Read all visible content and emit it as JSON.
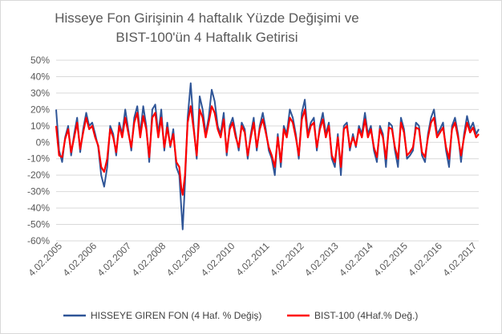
{
  "chart_data": {
    "type": "line",
    "title": [
      "Hisseye Fon Girişinin  4 haftalık Yüzde Değişimi  ve",
      "BIST-100'ün 4 Haftalık Getirisi"
    ],
    "xlabel": "",
    "ylabel": "",
    "ylim": [
      -60,
      50
    ],
    "yticks": [
      "50%",
      "40%",
      "30%",
      "20%",
      "10%",
      "0%",
      "-10%",
      "-20%",
      "-30%",
      "-40%",
      "-50%",
      "-60%"
    ],
    "xticks": [
      "4.02.2005",
      "4.02.2006",
      "4.02.2007",
      "4.02.2008",
      "4.02.2009",
      "4.02.2010",
      "4.02.2011",
      "4.02.2012",
      "4.02.2013",
      "4.02.2014",
      "4.02.2015",
      "4.02.2016",
      "4.02.2017"
    ],
    "x_range": [
      2005.09,
      2017.75
    ],
    "grid": "horizontal",
    "legend_position": "bottom",
    "series": [
      {
        "name": "HISSEYE GIREN FON (4 Haf. % Değiş)",
        "color": "#2f5597",
        "x": [
          2005.09,
          2005.18,
          2005.27,
          2005.36,
          2005.45,
          2005.54,
          2005.63,
          2005.72,
          2005.81,
          2005.9,
          2005.99,
          2006.08,
          2006.17,
          2006.26,
          2006.35,
          2006.44,
          2006.53,
          2006.62,
          2006.71,
          2006.8,
          2006.89,
          2006.98,
          2007.07,
          2007.16,
          2007.25,
          2007.34,
          2007.43,
          2007.52,
          2007.61,
          2007.7,
          2007.79,
          2007.88,
          2007.97,
          2008.06,
          2008.15,
          2008.24,
          2008.33,
          2008.42,
          2008.51,
          2008.6,
          2008.69,
          2008.78,
          2008.84,
          2008.88,
          2008.95,
          2009.03,
          2009.12,
          2009.21,
          2009.3,
          2009.39,
          2009.48,
          2009.57,
          2009.66,
          2009.75,
          2009.84,
          2009.93,
          2010.02,
          2010.11,
          2010.2,
          2010.29,
          2010.38,
          2010.47,
          2010.56,
          2010.65,
          2010.74,
          2010.83,
          2010.92,
          2011.01,
          2011.1,
          2011.19,
          2011.28,
          2011.37,
          2011.46,
          2011.55,
          2011.64,
          2011.73,
          2011.82,
          2011.91,
          2012.0,
          2012.09,
          2012.18,
          2012.27,
          2012.36,
          2012.45,
          2012.54,
          2012.63,
          2012.72,
          2012.81,
          2012.9,
          2012.99,
          2013.08,
          2013.17,
          2013.26,
          2013.35,
          2013.44,
          2013.53,
          2013.62,
          2013.71,
          2013.8,
          2013.89,
          2013.98,
          2014.07,
          2014.16,
          2014.25,
          2014.34,
          2014.43,
          2014.52,
          2014.61,
          2014.7,
          2014.79,
          2014.88,
          2014.97,
          2015.06,
          2015.15,
          2015.24,
          2015.33,
          2015.42,
          2015.51,
          2015.6,
          2015.69,
          2015.78,
          2015.87,
          2015.96,
          2016.05,
          2016.14,
          2016.23,
          2016.32,
          2016.41,
          2016.5,
          2016.59,
          2016.68,
          2016.77,
          2016.86,
          2016.95,
          2017.04,
          2017.13,
          2017.22,
          2017.31,
          2017.4,
          2017.49,
          2017.58,
          2017.67,
          2017.75
        ],
        "values": [
          20,
          -5,
          -12,
          3,
          10,
          -8,
          5,
          15,
          -6,
          8,
          18,
          10,
          12,
          5,
          -3,
          -20,
          -27,
          -15,
          10,
          5,
          -8,
          12,
          5,
          20,
          8,
          -5,
          15,
          22,
          5,
          22,
          10,
          -12,
          20,
          23,
          5,
          20,
          -5,
          12,
          -3,
          8,
          -15,
          -20,
          -40,
          -53,
          -25,
          15,
          36,
          10,
          -10,
          28,
          20,
          5,
          15,
          32,
          25,
          10,
          5,
          18,
          -8,
          10,
          15,
          5,
          -5,
          12,
          8,
          -10,
          5,
          15,
          -5,
          10,
          18,
          8,
          -5,
          -10,
          -20,
          5,
          -15,
          10,
          5,
          20,
          15,
          5,
          -10,
          18,
          26,
          5,
          12,
          15,
          -5,
          10,
          18,
          5,
          12,
          -10,
          -15,
          5,
          -20,
          10,
          12,
          -5,
          5,
          -3,
          10,
          5,
          18,
          5,
          10,
          -5,
          -12,
          10,
          5,
          -15,
          12,
          10,
          -5,
          -15,
          15,
          8,
          -10,
          -8,
          -5,
          12,
          10,
          -8,
          -12,
          5,
          15,
          20,
          5,
          8,
          12,
          -5,
          -15,
          10,
          15,
          5,
          -12,
          5,
          16,
          8,
          12,
          5,
          8
        ]
      },
      {
        "name": "BIST-100 (4Haf.% Değ.)",
        "color": "#ff0000",
        "x": [
          2005.09,
          2005.18,
          2005.27,
          2005.36,
          2005.45,
          2005.54,
          2005.63,
          2005.72,
          2005.81,
          2005.9,
          2005.99,
          2006.08,
          2006.17,
          2006.26,
          2006.35,
          2006.44,
          2006.53,
          2006.62,
          2006.71,
          2006.8,
          2006.89,
          2006.98,
          2007.07,
          2007.16,
          2007.25,
          2007.34,
          2007.43,
          2007.52,
          2007.61,
          2007.7,
          2007.79,
          2007.88,
          2007.97,
          2008.06,
          2008.15,
          2008.24,
          2008.33,
          2008.42,
          2008.51,
          2008.6,
          2008.69,
          2008.78,
          2008.84,
          2008.88,
          2008.95,
          2009.03,
          2009.12,
          2009.21,
          2009.3,
          2009.39,
          2009.48,
          2009.57,
          2009.66,
          2009.75,
          2009.84,
          2009.93,
          2010.02,
          2010.11,
          2010.2,
          2010.29,
          2010.38,
          2010.47,
          2010.56,
          2010.65,
          2010.74,
          2010.83,
          2010.92,
          2011.01,
          2011.1,
          2011.19,
          2011.28,
          2011.37,
          2011.46,
          2011.55,
          2011.64,
          2011.73,
          2011.82,
          2011.91,
          2012.0,
          2012.09,
          2012.18,
          2012.27,
          2012.36,
          2012.45,
          2012.54,
          2012.63,
          2012.72,
          2012.81,
          2012.9,
          2012.99,
          2013.08,
          2013.17,
          2013.26,
          2013.35,
          2013.44,
          2013.53,
          2013.62,
          2013.71,
          2013.8,
          2013.89,
          2013.98,
          2014.07,
          2014.16,
          2014.25,
          2014.34,
          2014.43,
          2014.52,
          2014.61,
          2014.7,
          2014.79,
          2014.88,
          2014.97,
          2015.06,
          2015.15,
          2015.24,
          2015.33,
          2015.42,
          2015.51,
          2015.6,
          2015.69,
          2015.78,
          2015.87,
          2015.96,
          2016.05,
          2016.14,
          2016.23,
          2016.32,
          2016.41,
          2016.5,
          2016.59,
          2016.68,
          2016.77,
          2016.86,
          2016.95,
          2017.04,
          2017.13,
          2017.22,
          2017.31,
          2017.4,
          2017.49,
          2017.58,
          2017.67,
          2017.75
        ],
        "values": [
          10,
          -8,
          -9,
          2,
          8,
          -6,
          3,
          12,
          -4,
          6,
          15,
          8,
          10,
          3,
          -2,
          -15,
          -18,
          -10,
          8,
          3,
          -6,
          10,
          3,
          15,
          6,
          -3,
          12,
          18,
          3,
          16,
          8,
          -9,
          15,
          18,
          3,
          15,
          -3,
          9,
          -2,
          5,
          -12,
          -15,
          -28,
          -32,
          -20,
          12,
          22,
          8,
          -8,
          20,
          15,
          3,
          12,
          22,
          18,
          8,
          3,
          14,
          -6,
          8,
          12,
          3,
          -3,
          10,
          6,
          -8,
          3,
          12,
          -3,
          8,
          14,
          6,
          -3,
          -8,
          -15,
          3,
          -12,
          8,
          3,
          15,
          12,
          3,
          -8,
          14,
          20,
          3,
          10,
          12,
          -3,
          8,
          14,
          3,
          10,
          -8,
          -12,
          3,
          -15,
          8,
          10,
          -3,
          3,
          -2,
          8,
          3,
          14,
          3,
          8,
          -3,
          -9,
          8,
          3,
          -10,
          9,
          8,
          -3,
          -10,
          12,
          6,
          -8,
          -6,
          -3,
          9,
          8,
          -6,
          -9,
          3,
          12,
          15,
          3,
          6,
          9,
          -3,
          -10,
          8,
          12,
          3,
          -8,
          3,
          12,
          6,
          9,
          3,
          5
        ]
      }
    ]
  }
}
